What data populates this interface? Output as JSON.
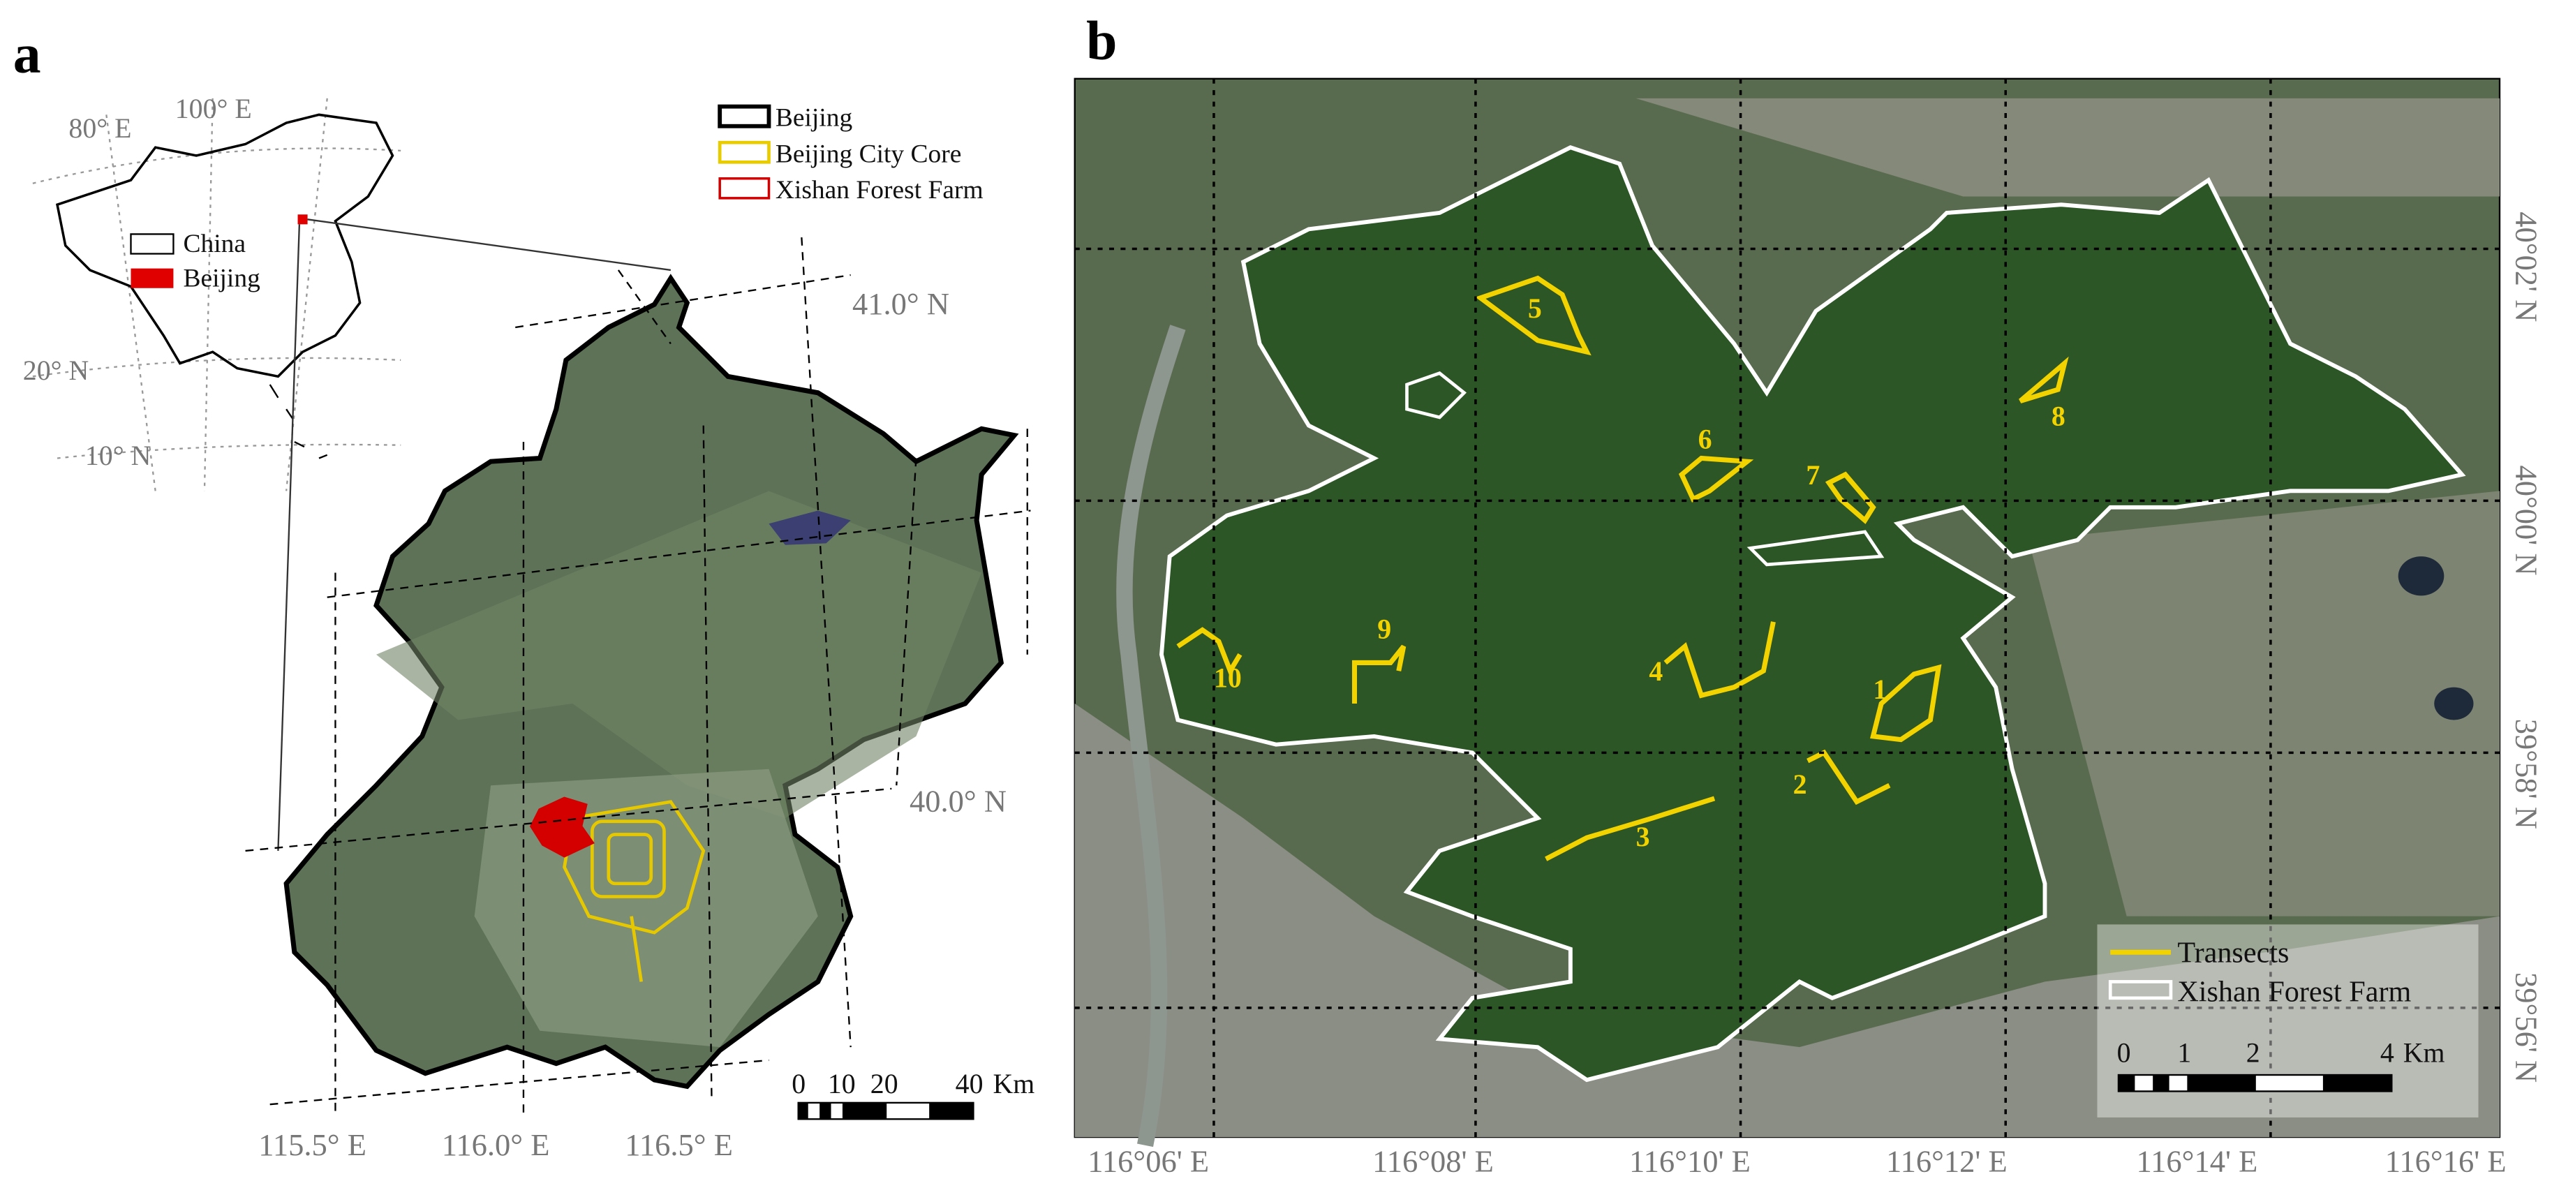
{
  "panels": [
    {
      "label": "a",
      "inset": {
        "lon_labels": [
          "80° E",
          "100° E"
        ],
        "lat_labels": [
          "20° N",
          "10° N"
        ],
        "legend": [
          "China",
          "Beijing"
        ]
      },
      "legend": [
        "Beijing",
        "Beijing City Core",
        "Xishan Forest Farm"
      ],
      "lon_labels": [
        "115.5° E",
        "116.0° E",
        "116.5° E"
      ],
      "lat_labels": [
        "41.0° N",
        "40.0° N"
      ],
      "scale_bar": {
        "ticks": [
          "0",
          "10",
          "20",
          "40"
        ],
        "unit": "Km"
      }
    },
    {
      "label": "b",
      "lon_labels": [
        "116°06' E",
        "116°08' E",
        "116°10' E",
        "116°12' E",
        "116°14' E",
        "116°16' E"
      ],
      "lat_labels": [
        "40°02' N",
        "40°00' N",
        "39°58' N",
        "39°56' N"
      ],
      "transects": [
        "1",
        "2",
        "3",
        "4",
        "5",
        "6",
        "7",
        "8",
        "9",
        "10"
      ],
      "legend": [
        "Transects",
        "Xishan Forest Farm"
      ],
      "scale_bar": {
        "ticks": [
          "0",
          "1",
          "2",
          "4"
        ],
        "unit": "Km"
      }
    }
  ]
}
